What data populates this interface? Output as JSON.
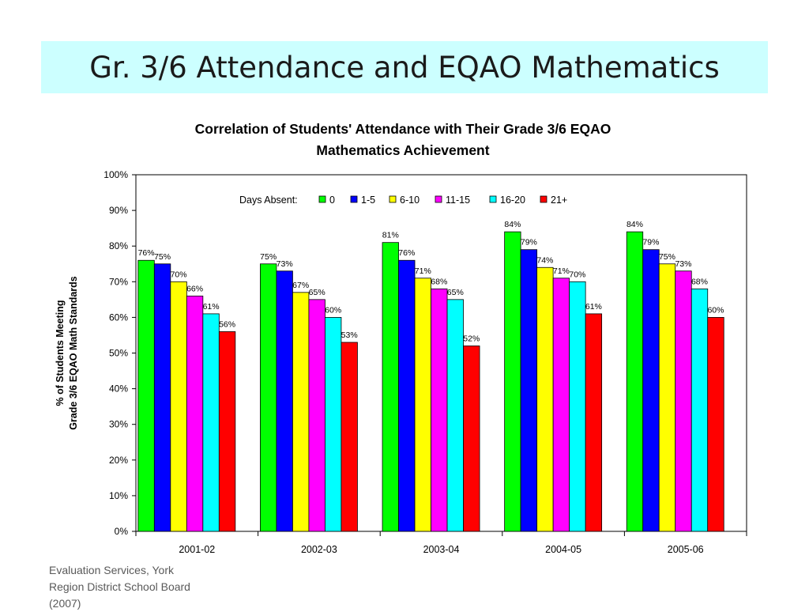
{
  "slide": {
    "title": "Gr. 3/6 Attendance and EQAO Mathematics",
    "source_lines": [
      "Evaluation Services, York",
      "Region District School Board",
      "(2007)"
    ],
    "banner_color": "#ccffff"
  },
  "chart_data": {
    "type": "bar",
    "title_lines": [
      "Correlation of Students' Attendance with Their Grade 3/6 EQAO",
      "Mathematics Achievement"
    ],
    "ylabel_lines": [
      "% of Students Meeting",
      "Grade 3/6 EQAO Math Standards"
    ],
    "xlabel": "",
    "ylim": [
      0,
      100
    ],
    "yticks": [
      "0%",
      "10%",
      "20%",
      "30%",
      "40%",
      "50%",
      "60%",
      "70%",
      "80%",
      "90%",
      "100%"
    ],
    "grid": false,
    "legend_title": "Days Absent:",
    "legend_position": "top",
    "categories": [
      "2001-02",
      "2002-03",
      "2003-04",
      "2004-05",
      "2005-06"
    ],
    "series": [
      {
        "name": "0",
        "color": "#00ff00",
        "values": [
          76,
          75,
          81,
          84,
          84
        ]
      },
      {
        "name": "1-5",
        "color": "#0000ff",
        "values": [
          75,
          73,
          76,
          79,
          79
        ]
      },
      {
        "name": "6-10",
        "color": "#ffff00",
        "values": [
          70,
          67,
          71,
          74,
          75
        ]
      },
      {
        "name": "11-15",
        "color": "#ff00ff",
        "values": [
          66,
          65,
          68,
          71,
          73
        ]
      },
      {
        "name": "16-20",
        "color": "#00ffff",
        "values": [
          61,
          60,
          65,
          70,
          68
        ]
      },
      {
        "name": "21+",
        "color": "#ff0000",
        "values": [
          56,
          53,
          52,
          61,
          60
        ]
      }
    ]
  }
}
